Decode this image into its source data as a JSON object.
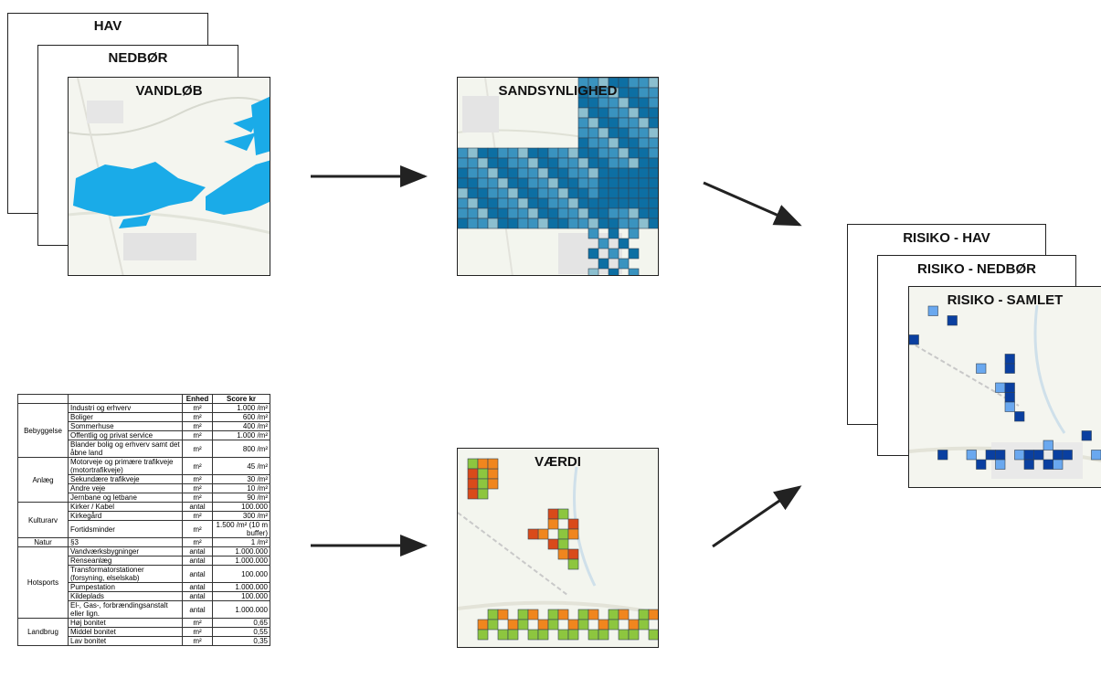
{
  "inputs": {
    "hav": "HAV",
    "nedbor": "NEDBØR",
    "vandlob": "VANDLØB"
  },
  "sandsynlighed": "SANDSYNLIGHED",
  "vaerdi": "VÆRDI",
  "risiko": {
    "hav": "RISIKO - HAV",
    "nedbor": "RISIKO - NEDBØR",
    "samlet": "RISIKO - SAMLET"
  },
  "colors": {
    "water_blue": "#1aabe8",
    "prob_dark": "#0d6fa3",
    "prob_mid": "#3a93bf",
    "prob_light": "#8cbfcf",
    "risk_dark": "#0a3fa0",
    "risk_light": "#6aa8ef",
    "value_green": "#8dc63f",
    "value_orange": "#f0861e",
    "value_red": "#d94a1a"
  },
  "table": {
    "headers": [
      "",
      "",
      "Enhed",
      "Score kr"
    ],
    "groups": [
      {
        "category": "Bebyggelse",
        "rows": [
          {
            "item": "Industri og erhverv",
            "unit": "m²",
            "score": "1.000 /m²"
          },
          {
            "item": "Boliger",
            "unit": "m²",
            "score": "600 /m²"
          },
          {
            "item": "Sommerhuse",
            "unit": "m²",
            "score": "400 /m²"
          },
          {
            "item": "Offentlig og privat service",
            "unit": "m²",
            "score": "1.000 /m²"
          },
          {
            "item": "Blander bolig og erhverv samt det åbne land",
            "unit": "m²",
            "score": "800 /m²"
          }
        ]
      },
      {
        "category": "Anlæg",
        "rows": [
          {
            "item": "Motorveje og primære trafikveje (motortrafikveje)",
            "unit": "m²",
            "score": "45 /m²"
          },
          {
            "item": "Sekundære trafikveje",
            "unit": "m²",
            "score": "30 /m²"
          },
          {
            "item": "Andre veje",
            "unit": "m²",
            "score": "10 /m²"
          },
          {
            "item": "Jernbane og letbane",
            "unit": "m²",
            "score": "90 /m²"
          }
        ]
      },
      {
        "category": "Kulturarv",
        "rows": [
          {
            "item": "Kirker / Kabel",
            "unit": "antal",
            "score": "100.000"
          },
          {
            "item": "Kirkegård",
            "unit": "m²",
            "score": "300 /m²"
          },
          {
            "item": "Fortidsminder",
            "unit": "m²",
            "score": "1.500 /m² (10 m buffer)"
          }
        ]
      },
      {
        "category": "Natur",
        "rows": [
          {
            "item": "§3",
            "unit": "m²",
            "score": "1 /m²"
          }
        ]
      },
      {
        "category": "Hotsports",
        "rows": [
          {
            "item": "Vandværksbygninger",
            "unit": "antal",
            "score": "1.000.000"
          },
          {
            "item": "Renseanlæg",
            "unit": "antal",
            "score": "1.000.000"
          },
          {
            "item": "Transformatorstationer (forsyning, elselskab)",
            "unit": "antal",
            "score": "100.000"
          },
          {
            "item": "Pumpestation",
            "unit": "antal",
            "score": "1.000.000"
          },
          {
            "item": "Kildeplads",
            "unit": "antal",
            "score": "100.000"
          },
          {
            "item": "El-, Gas-, forbrændingsanstalt eller lign.",
            "unit": "antal",
            "score": "1.000.000"
          }
        ]
      },
      {
        "category": "Landbrug",
        "rows": [
          {
            "item": "Høj bonitet",
            "unit": "m²",
            "score": "0,65"
          },
          {
            "item": "Middel bonitet",
            "unit": "m²",
            "score": "0,55"
          },
          {
            "item": "Lav bonitet",
            "unit": "m²",
            "score": "0,35"
          }
        ]
      }
    ]
  }
}
